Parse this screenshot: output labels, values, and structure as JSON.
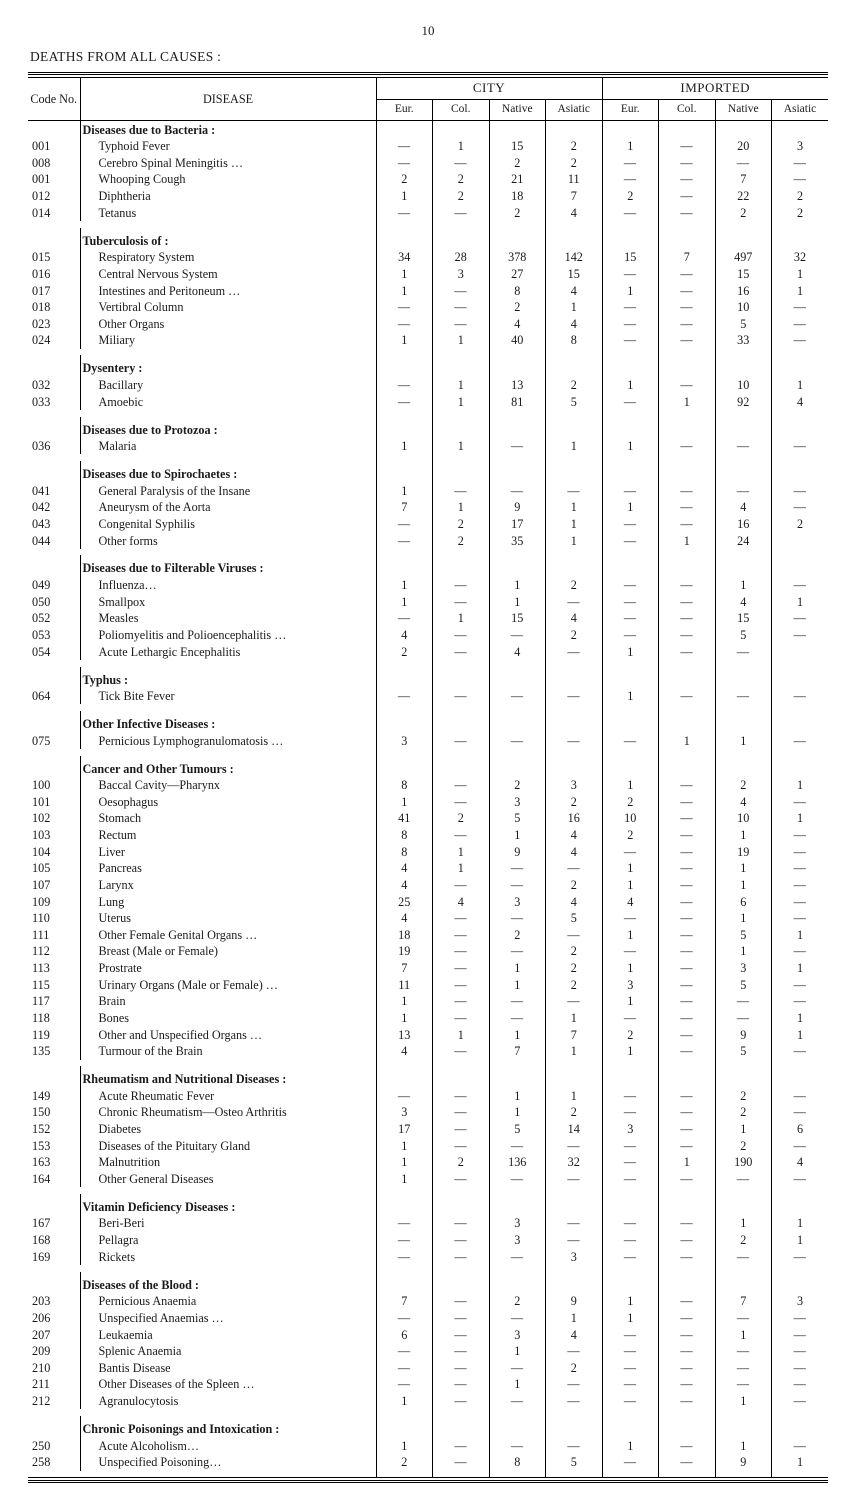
{
  "page_number": "10",
  "title": "DEATHS FROM ALL CAUSES :",
  "columns": {
    "code": "Code No.",
    "disease": "DISEASE",
    "group_city": "CITY",
    "group_imported": "IMPORTED",
    "eur": "Eur.",
    "col": "Col.",
    "native": "Native",
    "asiatic": "Asiatic"
  },
  "sections": [
    {
      "title": "Diseases due to Bacteria :",
      "rows": [
        {
          "code": "001",
          "name": "Typhoid Fever",
          "city": [
            "—",
            "1",
            "15",
            "2"
          ],
          "imp": [
            "1",
            "—",
            "20",
            "3"
          ]
        },
        {
          "code": "008",
          "name": "Cerebro Spinal Meningitis …",
          "city": [
            "—",
            "—",
            "2",
            "2"
          ],
          "imp": [
            "—",
            "—",
            "—",
            "—"
          ]
        },
        {
          "code": "001",
          "name": "Whooping Cough",
          "city": [
            "2",
            "2",
            "21",
            "11"
          ],
          "imp": [
            "—",
            "—",
            "7",
            "—"
          ]
        },
        {
          "code": "012",
          "name": "Diphtheria",
          "city": [
            "1",
            "2",
            "18",
            "7"
          ],
          "imp": [
            "2",
            "—",
            "22",
            "2"
          ]
        },
        {
          "code": "014",
          "name": "Tetanus",
          "city": [
            "—",
            "—",
            "2",
            "4"
          ],
          "imp": [
            "—",
            "—",
            "2",
            "2"
          ]
        }
      ]
    },
    {
      "title": "Tuberculosis of :",
      "rows": [
        {
          "code": "015",
          "name": "Respiratory System",
          "city": [
            "34",
            "28",
            "378",
            "142"
          ],
          "imp": [
            "15",
            "7",
            "497",
            "32"
          ]
        },
        {
          "code": "016",
          "name": "Central Nervous System",
          "city": [
            "1",
            "3",
            "27",
            "15"
          ],
          "imp": [
            "—",
            "—",
            "15",
            "1"
          ]
        },
        {
          "code": "017",
          "name": "Intestines and Peritoneum …",
          "city": [
            "1",
            "—",
            "8",
            "4"
          ],
          "imp": [
            "1",
            "—",
            "16",
            "1"
          ]
        },
        {
          "code": "018",
          "name": "Vertibral Column",
          "city": [
            "—",
            "—",
            "2",
            "1"
          ],
          "imp": [
            "—",
            "—",
            "10",
            "—"
          ]
        },
        {
          "code": "023",
          "name": "Other Organs",
          "city": [
            "—",
            "—",
            "4",
            "4"
          ],
          "imp": [
            "—",
            "—",
            "5",
            "—"
          ]
        },
        {
          "code": "024",
          "name": "Miliary",
          "city": [
            "1",
            "1",
            "40",
            "8"
          ],
          "imp": [
            "—",
            "—",
            "33",
            "—"
          ]
        }
      ]
    },
    {
      "title": "Dysentery :",
      "rows": [
        {
          "code": "032",
          "name": "Bacillary",
          "city": [
            "—",
            "1",
            "13",
            "2"
          ],
          "imp": [
            "1",
            "—",
            "10",
            "1"
          ]
        },
        {
          "code": "033",
          "name": "Amoebic",
          "city": [
            "—",
            "1",
            "81",
            "5"
          ],
          "imp": [
            "—",
            "1",
            "92",
            "4"
          ]
        }
      ]
    },
    {
      "title": "Diseases due to Protozoa :",
      "rows": [
        {
          "code": "036",
          "name": "Malaria",
          "city": [
            "1",
            "1",
            "—",
            "1"
          ],
          "imp": [
            "1",
            "—",
            "—",
            "—"
          ]
        }
      ]
    },
    {
      "title": "Diseases due to Spirochaetes :",
      "rows": [
        {
          "code": "041",
          "name": "General Paralysis of the Insane",
          "city": [
            "1",
            "—",
            "—",
            "—"
          ],
          "imp": [
            "—",
            "—",
            "—",
            "—"
          ]
        },
        {
          "code": "042",
          "name": "Aneurysm of the Aorta",
          "city": [
            "7",
            "1",
            "9",
            "1"
          ],
          "imp": [
            "1",
            "—",
            "4",
            "—"
          ]
        },
        {
          "code": "043",
          "name": "Congenital Syphilis",
          "city": [
            "—",
            "2",
            "17",
            "1"
          ],
          "imp": [
            "—",
            "—",
            "16",
            "2"
          ]
        },
        {
          "code": "044",
          "name": "Other forms",
          "city": [
            "—",
            "2",
            "35",
            "1"
          ],
          "imp": [
            "—",
            "1",
            "24",
            ""
          ]
        }
      ]
    },
    {
      "title": "Diseases due to Filterable Viruses :",
      "rows": [
        {
          "code": "049",
          "name": "Influenza…",
          "city": [
            "1",
            "—",
            "1",
            "2"
          ],
          "imp": [
            "—",
            "—",
            "1",
            "—"
          ]
        },
        {
          "code": "050",
          "name": "Smallpox",
          "city": [
            "1",
            "—",
            "1",
            "—"
          ],
          "imp": [
            "—",
            "—",
            "4",
            "1"
          ]
        },
        {
          "code": "052",
          "name": "Measles",
          "city": [
            "—",
            "1",
            "15",
            "4"
          ],
          "imp": [
            "—",
            "—",
            "15",
            "—"
          ]
        },
        {
          "code": "053",
          "name": "Poliomyelitis and Polioencephalitis …",
          "city": [
            "4",
            "—",
            "—",
            "2"
          ],
          "imp": [
            "—",
            "—",
            "5",
            "—"
          ]
        },
        {
          "code": "054",
          "name": "Acute Lethargic Encephalitis",
          "city": [
            "2",
            "—",
            "4",
            "—"
          ],
          "imp": [
            "1",
            "—",
            "—",
            ""
          ]
        }
      ]
    },
    {
      "title": "Typhus :",
      "rows": [
        {
          "code": "064",
          "name": "Tick Bite Fever",
          "city": [
            "—",
            "—",
            "—",
            "—"
          ],
          "imp": [
            "1",
            "—",
            "—",
            "—"
          ]
        }
      ]
    },
    {
      "title": "Other Infective Diseases :",
      "rows": [
        {
          "code": "075",
          "name": "Pernicious Lymphogranulomatosis …",
          "city": [
            "3",
            "—",
            "—",
            "—"
          ],
          "imp": [
            "—",
            "1",
            "1",
            "—"
          ]
        }
      ]
    },
    {
      "title": "Cancer and Other Tumours :",
      "rows": [
        {
          "code": "100",
          "name": "Baccal Cavity—Pharynx",
          "city": [
            "8",
            "—",
            "2",
            "3"
          ],
          "imp": [
            "1",
            "—",
            "2",
            "1"
          ]
        },
        {
          "code": "101",
          "name": "Oesophagus",
          "city": [
            "1",
            "—",
            "3",
            "2"
          ],
          "imp": [
            "2",
            "—",
            "4",
            "—"
          ]
        },
        {
          "code": "102",
          "name": "Stomach",
          "city": [
            "41",
            "2",
            "5",
            "16"
          ],
          "imp": [
            "10",
            "—",
            "10",
            "1"
          ]
        },
        {
          "code": "103",
          "name": "Rectum",
          "city": [
            "8",
            "—",
            "1",
            "4"
          ],
          "imp": [
            "2",
            "—",
            "1",
            "—"
          ]
        },
        {
          "code": "104",
          "name": "Liver",
          "city": [
            "8",
            "1",
            "9",
            "4"
          ],
          "imp": [
            "—",
            "—",
            "19",
            "—"
          ]
        },
        {
          "code": "105",
          "name": "Pancreas",
          "city": [
            "4",
            "1",
            "—",
            "—"
          ],
          "imp": [
            "1",
            "—",
            "1",
            "—"
          ]
        },
        {
          "code": "107",
          "name": "Larynx",
          "city": [
            "4",
            "—",
            "—",
            "2"
          ],
          "imp": [
            "1",
            "—",
            "1",
            "—"
          ]
        },
        {
          "code": "109",
          "name": "Lung",
          "city": [
            "25",
            "4",
            "3",
            "4"
          ],
          "imp": [
            "4",
            "—",
            "6",
            "—"
          ]
        },
        {
          "code": "110",
          "name": "Uterus",
          "city": [
            "4",
            "—",
            "—",
            "5"
          ],
          "imp": [
            "—",
            "—",
            "1",
            "—"
          ]
        },
        {
          "code": "111",
          "name": "Other Female Genital Organs …",
          "city": [
            "18",
            "—",
            "2",
            "—"
          ],
          "imp": [
            "1",
            "—",
            "5",
            "1"
          ]
        },
        {
          "code": "112",
          "name": "Breast (Male or Female)",
          "city": [
            "19",
            "—",
            "—",
            "2"
          ],
          "imp": [
            "—",
            "—",
            "1",
            "—"
          ]
        },
        {
          "code": "113",
          "name": "Prostrate",
          "city": [
            "7",
            "—",
            "1",
            "2"
          ],
          "imp": [
            "1",
            "—",
            "3",
            "1"
          ]
        },
        {
          "code": "115",
          "name": "Urinary Organs (Male or Female) …",
          "city": [
            "11",
            "—",
            "1",
            "2"
          ],
          "imp": [
            "3",
            "—",
            "5",
            "—"
          ]
        },
        {
          "code": "117",
          "name": "Brain",
          "city": [
            "1",
            "—",
            "—",
            "—"
          ],
          "imp": [
            "1",
            "—",
            "—",
            "—"
          ]
        },
        {
          "code": "118",
          "name": "Bones",
          "city": [
            "1",
            "—",
            "—",
            "1"
          ],
          "imp": [
            "—",
            "—",
            "—",
            "1"
          ]
        },
        {
          "code": "119",
          "name": "Other and Unspecified Organs …",
          "city": [
            "13",
            "1",
            "1",
            "7"
          ],
          "imp": [
            "2",
            "—",
            "9",
            "1"
          ]
        },
        {
          "code": "135",
          "name": "Turmour of the Brain",
          "city": [
            "4",
            "—",
            "7",
            "1"
          ],
          "imp": [
            "1",
            "—",
            "5",
            "—"
          ]
        }
      ]
    },
    {
      "title": "Rheumatism and Nutritional Diseases :",
      "rows": [
        {
          "code": "149",
          "name": "Acute Rheumatic Fever",
          "city": [
            "—",
            "—",
            "1",
            "1"
          ],
          "imp": [
            "—",
            "—",
            "2",
            "—"
          ]
        },
        {
          "code": "150",
          "name": "Chronic Rheumatism—Osteo Arthritis",
          "city": [
            "3",
            "—",
            "1",
            "2"
          ],
          "imp": [
            "—",
            "—",
            "2",
            "—"
          ]
        },
        {
          "code": "152",
          "name": "Diabetes",
          "city": [
            "17",
            "—",
            "5",
            "14"
          ],
          "imp": [
            "3",
            "—",
            "1",
            "6"
          ]
        },
        {
          "code": "153",
          "name": "Diseases of the Pituitary Gland",
          "city": [
            "1",
            "—",
            "—",
            "—"
          ],
          "imp": [
            "—",
            "—",
            "2",
            "—"
          ]
        },
        {
          "code": "163",
          "name": "Malnutrition",
          "city": [
            "1",
            "2",
            "136",
            "32"
          ],
          "imp": [
            "—",
            "1",
            "190",
            "4"
          ]
        },
        {
          "code": "164",
          "name": "Other General Diseases",
          "city": [
            "1",
            "—",
            "—",
            "—"
          ],
          "imp": [
            "—",
            "—",
            "—",
            "—"
          ]
        }
      ]
    },
    {
      "title": "Vitamin Deficiency Diseases :",
      "rows": [
        {
          "code": "167",
          "name": "Beri-Beri",
          "city": [
            "—",
            "—",
            "3",
            "—"
          ],
          "imp": [
            "—",
            "—",
            "1",
            "1"
          ]
        },
        {
          "code": "168",
          "name": "Pellagra",
          "city": [
            "—",
            "—",
            "3",
            "—"
          ],
          "imp": [
            "—",
            "—",
            "2",
            "1"
          ]
        },
        {
          "code": "169",
          "name": "Rickets",
          "city": [
            "—",
            "—",
            "—",
            "3"
          ],
          "imp": [
            "—",
            "—",
            "—",
            "—"
          ]
        }
      ]
    },
    {
      "title": "Diseases of the Blood :",
      "rows": [
        {
          "code": "203",
          "name": "Pernicious Anaemia",
          "city": [
            "7",
            "—",
            "2",
            "9"
          ],
          "imp": [
            "1",
            "—",
            "7",
            "3"
          ]
        },
        {
          "code": "206",
          "name": "Unspecified Anaemias …",
          "city": [
            "—",
            "—",
            "—",
            "1"
          ],
          "imp": [
            "1",
            "—",
            "—",
            "—"
          ]
        },
        {
          "code": "207",
          "name": "Leukaemia",
          "city": [
            "6",
            "—",
            "3",
            "4"
          ],
          "imp": [
            "—",
            "—",
            "1",
            "—"
          ]
        },
        {
          "code": "209",
          "name": "Splenic Anaemia",
          "city": [
            "—",
            "—",
            "1",
            "—"
          ],
          "imp": [
            "—",
            "—",
            "—",
            "—"
          ]
        },
        {
          "code": "210",
          "name": "Bantis Disease",
          "city": [
            "—",
            "—",
            "—",
            "2"
          ],
          "imp": [
            "—",
            "—",
            "—",
            "—"
          ]
        },
        {
          "code": "211",
          "name": "Other Diseases of the Spleen …",
          "city": [
            "—",
            "—",
            "1",
            "—"
          ],
          "imp": [
            "—",
            "—",
            "—",
            "—"
          ]
        },
        {
          "code": "212",
          "name": "Agranulocytosis",
          "city": [
            "1",
            "—",
            "—",
            "—"
          ],
          "imp": [
            "—",
            "—",
            "1",
            "—"
          ]
        }
      ]
    },
    {
      "title": "Chronic Poisonings and Intoxication :",
      "rows": [
        {
          "code": "250",
          "name": "Acute Alcoholism…",
          "city": [
            "1",
            "—",
            "—",
            "—"
          ],
          "imp": [
            "1",
            "—",
            "1",
            "—"
          ]
        },
        {
          "code": "258",
          "name": "Unspecified Poisoning…",
          "city": [
            "2",
            "—",
            "8",
            "5"
          ],
          "imp": [
            "—",
            "—",
            "9",
            "1"
          ]
        }
      ]
    }
  ]
}
